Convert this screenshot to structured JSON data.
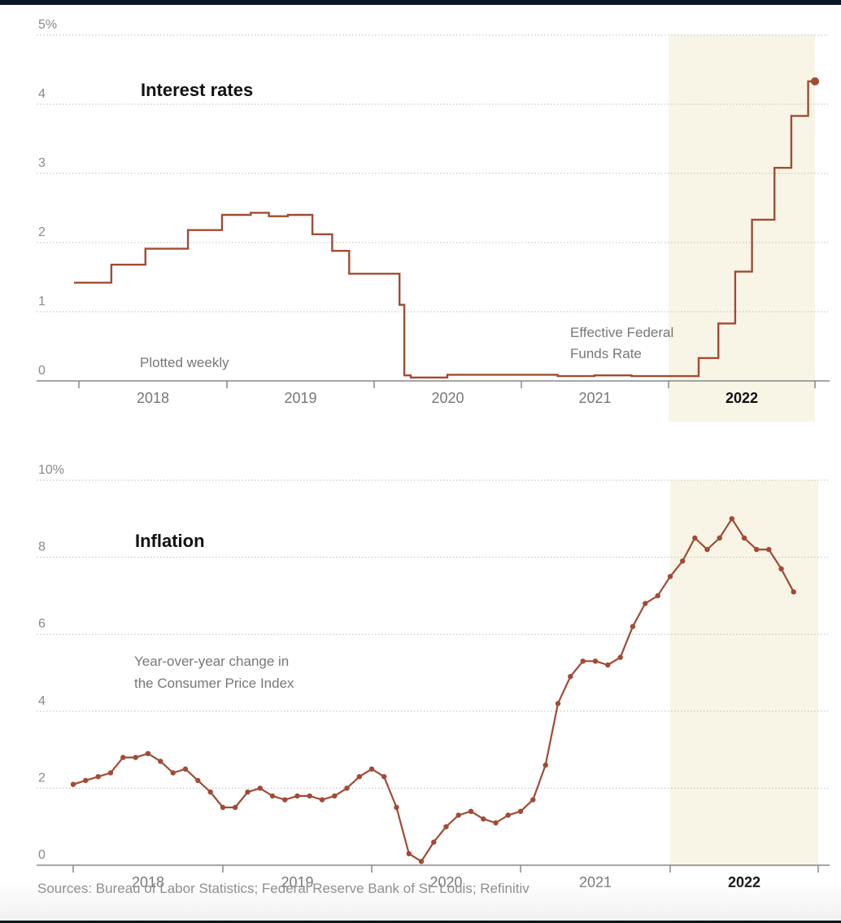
{
  "source": "Sources: Bureau of Labor Statistics; Federal Reserve Bank of St. Louis; Refinitiv",
  "colors": {
    "line": "#a24b34",
    "highlight": "#f8f5e6",
    "grid": "#bcbcbc"
  },
  "chart_data": [
    {
      "type": "line",
      "title": "Interest rates",
      "annotations": [
        "Plotted weekly"
      ],
      "series": [
        {
          "name": "Effective Federal Funds Rate",
          "name_lines": [
            "Effective Federal",
            "Funds Rate"
          ]
        }
      ],
      "ylim": [
        0,
        5
      ],
      "y_ticks": [
        "0",
        "1",
        "2",
        "3",
        "4",
        "5%"
      ],
      "x_labels": [
        "2018",
        "2019",
        "2020",
        "2021",
        "2022"
      ],
      "highlight_year": "2022",
      "grid": true,
      "steps": [
        [
          "2017-12-20",
          1.42
        ],
        [
          "2018-03-22",
          1.68
        ],
        [
          "2018-06-14",
          1.91
        ],
        [
          "2018-09-27",
          2.18
        ],
        [
          "2018-12-20",
          2.4
        ],
        [
          "2019-03-01",
          2.43
        ],
        [
          "2019-04-15",
          2.38
        ],
        [
          "2019-06-01",
          2.4
        ],
        [
          "2019-08-01",
          2.12
        ],
        [
          "2019-09-19",
          1.88
        ],
        [
          "2019-10-31",
          1.55
        ],
        [
          "2020-03-04",
          1.1
        ],
        [
          "2020-03-16",
          0.08
        ],
        [
          "2020-04-01",
          0.05
        ],
        [
          "2020-07-01",
          0.09
        ],
        [
          "2021-04-01",
          0.07
        ],
        [
          "2021-07-01",
          0.08
        ],
        [
          "2021-10-01",
          0.07
        ],
        [
          "2022-03-17",
          0.33
        ],
        [
          "2022-05-05",
          0.83
        ],
        [
          "2022-06-16",
          1.58
        ],
        [
          "2022-07-28",
          2.33
        ],
        [
          "2022-09-22",
          3.08
        ],
        [
          "2022-11-03",
          3.83
        ],
        [
          "2022-12-15",
          4.33
        ],
        [
          "2022-12-28",
          4.33
        ]
      ]
    },
    {
      "type": "line",
      "title": "Inflation",
      "annotations": [
        "Year-over-year change in",
        "the Consumer Price Index"
      ],
      "ylim": [
        0,
        10
      ],
      "y_ticks": [
        "0",
        "2",
        "4",
        "6",
        "8",
        "10%"
      ],
      "x_labels": [
        "2018",
        "2019",
        "2020",
        "2021",
        "2022"
      ],
      "highlight_year": "2022",
      "grid": true,
      "x_start": "2018-01",
      "values": [
        2.1,
        2.2,
        2.3,
        2.4,
        2.8,
        2.8,
        2.9,
        2.7,
        2.4,
        2.5,
        2.2,
        1.9,
        1.5,
        1.5,
        1.9,
        2.0,
        1.8,
        1.7,
        1.8,
        1.8,
        1.7,
        1.8,
        2.0,
        2.3,
        2.5,
        2.3,
        1.5,
        0.3,
        0.1,
        0.6,
        1.0,
        1.3,
        1.4,
        1.2,
        1.1,
        1.3,
        1.4,
        1.7,
        2.6,
        4.2,
        4.9,
        5.3,
        5.3,
        5.2,
        5.4,
        6.2,
        6.8,
        7.0,
        7.5,
        7.9,
        8.5,
        8.2,
        8.5,
        9.0,
        8.5,
        8.2,
        8.2,
        7.7,
        7.1
      ]
    }
  ]
}
